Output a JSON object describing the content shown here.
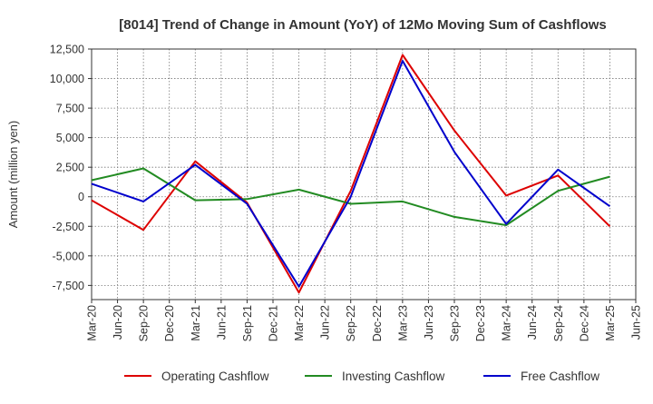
{
  "chart_data": {
    "type": "line",
    "title": "[8014]  Trend of Change in Amount (YoY) of 12Mo Moving Sum of Cashflows",
    "xlabel": "",
    "ylabel": "Amount (million yen)",
    "ylim": [
      -8700,
      12500
    ],
    "yticks": [
      12500,
      10000,
      7500,
      5000,
      2500,
      0,
      -2500,
      -5000,
      -7500
    ],
    "ytick_labels": [
      "12,500",
      "10,000",
      "7,500",
      "5,000",
      "2,500",
      "0",
      "-2,500",
      "-5,000",
      "-7,500"
    ],
    "categories": [
      "Mar-20",
      "Jun-20",
      "Sep-20",
      "Dec-20",
      "Mar-21",
      "Jun-21",
      "Sep-21",
      "Dec-21",
      "Mar-22",
      "Jun-22",
      "Sep-22",
      "Dec-22",
      "Mar-23",
      "Jun-23",
      "Sep-23",
      "Dec-23",
      "Mar-24",
      "Jun-24",
      "Sep-24",
      "Dec-24",
      "Mar-25",
      "Jun-25"
    ],
    "grid": true,
    "legend_position": "bottom",
    "series": [
      {
        "name": "Operating Cashflow",
        "color": "#dd0000",
        "points": [
          [
            0,
            -300
          ],
          [
            2,
            -2800
          ],
          [
            4,
            3000
          ],
          [
            6,
            -500
          ],
          [
            8,
            -8100
          ],
          [
            10,
            500
          ],
          [
            12,
            12000
          ],
          [
            14,
            5600
          ],
          [
            16,
            100
          ],
          [
            18,
            1800
          ],
          [
            20,
            -2500
          ]
        ]
      },
      {
        "name": "Investing Cashflow",
        "color": "#228b22",
        "points": [
          [
            0,
            1400
          ],
          [
            2,
            2400
          ],
          [
            4,
            -300
          ],
          [
            6,
            -200
          ],
          [
            8,
            600
          ],
          [
            10,
            -600
          ],
          [
            12,
            -400
          ],
          [
            14,
            -1700
          ],
          [
            16,
            -2400
          ],
          [
            18,
            500
          ],
          [
            20,
            1700
          ]
        ]
      },
      {
        "name": "Free Cashflow",
        "color": "#0000cc",
        "points": [
          [
            0,
            1100
          ],
          [
            2,
            -400
          ],
          [
            4,
            2700
          ],
          [
            6,
            -600
          ],
          [
            8,
            -7600
          ],
          [
            10,
            0
          ],
          [
            12,
            11500
          ],
          [
            14,
            3800
          ],
          [
            16,
            -2300
          ],
          [
            18,
            2300
          ],
          [
            20,
            -800
          ]
        ]
      }
    ]
  }
}
